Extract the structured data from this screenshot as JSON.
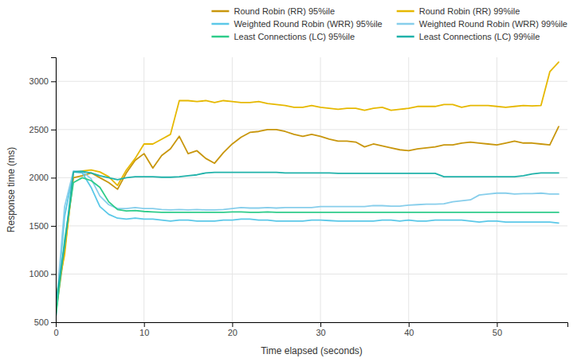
{
  "chart_data": {
    "type": "line",
    "xlabel": "Time elapsed (seconds)",
    "ylabel": "Response time (ms)",
    "xlim": [
      0,
      58
    ],
    "ylim": [
      500,
      3250
    ],
    "xticks": [
      0,
      10,
      20,
      30,
      40,
      50
    ],
    "yticks": [
      500,
      1000,
      1500,
      2000,
      2500,
      3000
    ],
    "grid": true,
    "legend": "top",
    "x": [
      0,
      1,
      2,
      3,
      4,
      5,
      6,
      7,
      8,
      9,
      10,
      11,
      12,
      13,
      14,
      15,
      16,
      17,
      18,
      19,
      20,
      21,
      22,
      23,
      24,
      25,
      26,
      27,
      28,
      29,
      30,
      31,
      32,
      33,
      34,
      35,
      36,
      37,
      38,
      39,
      40,
      41,
      42,
      43,
      44,
      45,
      46,
      47,
      48,
      49,
      50,
      51,
      52,
      53,
      54,
      55,
      56,
      57
    ],
    "series": [
      {
        "name": "Round Robin (RR) 95%ile",
        "color": "#c8960c",
        "values": [
          600,
          1250,
          2000,
          2020,
          2050,
          2000,
          1950,
          1880,
          2050,
          2180,
          2250,
          2100,
          2230,
          2300,
          2430,
          2250,
          2280,
          2200,
          2150,
          2260,
          2350,
          2420,
          2470,
          2480,
          2500,
          2500,
          2480,
          2450,
          2430,
          2450,
          2430,
          2400,
          2380,
          2380,
          2370,
          2320,
          2350,
          2330,
          2310,
          2290,
          2280,
          2300,
          2310,
          2320,
          2340,
          2340,
          2360,
          2370,
          2360,
          2350,
          2340,
          2360,
          2380,
          2360,
          2360,
          2350,
          2340,
          2530
        ]
      },
      {
        "name": "Round Robin (RR) 99%ile",
        "color": "#e6b800",
        "values": [
          750,
          1200,
          2060,
          2070,
          2080,
          2060,
          2010,
          1920,
          2080,
          2200,
          2350,
          2350,
          2400,
          2450,
          2800,
          2800,
          2790,
          2800,
          2780,
          2800,
          2790,
          2780,
          2780,
          2790,
          2770,
          2760,
          2750,
          2730,
          2730,
          2750,
          2730,
          2720,
          2710,
          2720,
          2720,
          2700,
          2720,
          2730,
          2700,
          2710,
          2720,
          2740,
          2740,
          2740,
          2760,
          2760,
          2730,
          2750,
          2750,
          2750,
          2740,
          2730,
          2740,
          2750,
          2745,
          2750,
          3100,
          3200
        ]
      },
      {
        "name": "Weighted Round Robin (WRR) 95%ile",
        "color": "#5bc8e8",
        "values": [
          550,
          1600,
          2060,
          2050,
          1900,
          1700,
          1620,
          1580,
          1570,
          1580,
          1570,
          1570,
          1560,
          1550,
          1560,
          1560,
          1550,
          1550,
          1550,
          1560,
          1560,
          1570,
          1570,
          1560,
          1560,
          1550,
          1550,
          1550,
          1550,
          1560,
          1560,
          1555,
          1550,
          1550,
          1550,
          1550,
          1550,
          1560,
          1560,
          1550,
          1560,
          1550,
          1550,
          1560,
          1560,
          1560,
          1560,
          1550,
          1540,
          1550,
          1550,
          1540,
          1540,
          1540,
          1540,
          1540,
          1540,
          1530
        ]
      },
      {
        "name": "Weighted Round Robin (WRR) 99%ile",
        "color": "#87ceeb",
        "values": [
          600,
          1700,
          2070,
          2065,
          1990,
          1810,
          1720,
          1680,
          1680,
          1690,
          1680,
          1680,
          1670,
          1665,
          1670,
          1665,
          1670,
          1665,
          1665,
          1670,
          1680,
          1690,
          1685,
          1685,
          1690,
          1685,
          1690,
          1690,
          1690,
          1690,
          1700,
          1700,
          1700,
          1700,
          1700,
          1700,
          1710,
          1710,
          1705,
          1705,
          1715,
          1720,
          1725,
          1725,
          1730,
          1750,
          1760,
          1770,
          1820,
          1830,
          1840,
          1840,
          1830,
          1835,
          1835,
          1840,
          1830,
          1830
        ]
      },
      {
        "name": "Least Connections (LC) 95%ile",
        "color": "#2ecc8a",
        "values": [
          550,
          1350,
          1950,
          2000,
          1970,
          1900,
          1750,
          1670,
          1655,
          1660,
          1650,
          1645,
          1640,
          1640,
          1640,
          1640,
          1640,
          1640,
          1640,
          1640,
          1645,
          1645,
          1640,
          1640,
          1645,
          1640,
          1640,
          1640,
          1640,
          1640,
          1640,
          1640,
          1640,
          1640,
          1640,
          1640,
          1640,
          1640,
          1640,
          1640,
          1640,
          1640,
          1640,
          1640,
          1640,
          1640,
          1640,
          1640,
          1640,
          1640,
          1640,
          1640,
          1640,
          1640,
          1640,
          1640,
          1640,
          1640
        ]
      },
      {
        "name": "Least Connections (LC) 99%ile",
        "color": "#20b2aa",
        "values": [
          700,
          1300,
          2060,
          2065,
          2050,
          2020,
          2000,
          1980,
          2000,
          2010,
          2010,
          2010,
          2005,
          2005,
          2010,
          2020,
          2030,
          2050,
          2055,
          2055,
          2055,
          2055,
          2055,
          2055,
          2055,
          2055,
          2050,
          2050,
          2050,
          2050,
          2050,
          2050,
          2045,
          2045,
          2045,
          2045,
          2045,
          2045,
          2045,
          2045,
          2045,
          2045,
          2045,
          2045,
          2010,
          2010,
          2010,
          2010,
          2010,
          2010,
          2010,
          2010,
          2010,
          2020,
          2040,
          2050,
          2050,
          2050
        ]
      }
    ]
  }
}
